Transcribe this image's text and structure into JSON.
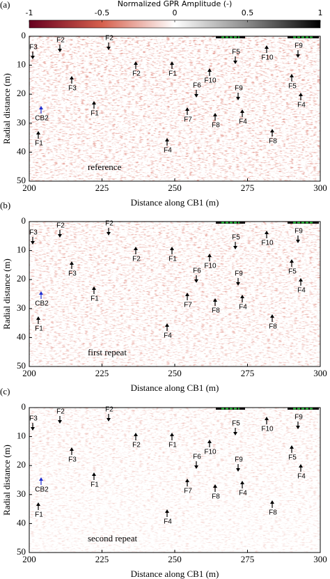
{
  "chart_data": [
    {
      "type": "radargram",
      "panel_label": "(a)",
      "note": "reference",
      "xlabel": "Distance along CB1 (m)",
      "ylabel": "Radial distance (m)",
      "xlim": [
        200,
        300
      ],
      "ylim": [
        0,
        50
      ],
      "y_inverted": true,
      "xticks": [
        200,
        225,
        250,
        275,
        300
      ],
      "yticks": [
        0,
        10,
        20,
        30,
        40,
        50
      ],
      "colorbar": {
        "label": "Normalized GPR Amplitude (-)",
        "lim": [
          -1,
          1
        ],
        "ticks": [
          -1,
          -0.5,
          0,
          0.5,
          1
        ],
        "colors": [
          "#67001f",
          "#d6604d",
          "#ffffff",
          "#8a8a8a",
          "#000000"
        ]
      },
      "annotations": [
        {
          "text": "F3",
          "color": "#000000"
        },
        {
          "text": "F2",
          "color": "#000000"
        },
        {
          "text": "F2",
          "color": "#000000"
        },
        {
          "text": "F5",
          "color": "#000000"
        },
        {
          "text": "F10",
          "color": "#000000"
        },
        {
          "text": "F9",
          "color": "#000000"
        },
        {
          "text": "F2",
          "color": "#000000"
        },
        {
          "text": "F1",
          "color": "#000000"
        },
        {
          "text": "F3",
          "color": "#000000"
        },
        {
          "text": "F10",
          "color": "#000000"
        },
        {
          "text": "F6",
          "color": "#000000"
        },
        {
          "text": "F9",
          "color": "#000000"
        },
        {
          "text": "F5",
          "color": "#000000"
        },
        {
          "text": "F1",
          "color": "#000000"
        },
        {
          "text": "CB2",
          "color": "#1f2fd0"
        },
        {
          "text": "F4",
          "color": "#000000"
        },
        {
          "text": "F7",
          "color": "#000000"
        },
        {
          "text": "F8",
          "color": "#000000"
        },
        {
          "text": "F4",
          "color": "#000000"
        },
        {
          "text": "F8",
          "color": "#000000"
        },
        {
          "text": "F1",
          "color": "#000000"
        },
        {
          "text": "F4",
          "color": "#000000"
        }
      ]
    },
    {
      "type": "radargram",
      "panel_label": "(b)",
      "note": "first repeat",
      "xlabel": "Distance along CB1 (m)",
      "ylabel": "Radial distance (m)",
      "xlim": [
        200,
        300
      ],
      "ylim": [
        0,
        50
      ],
      "y_inverted": true,
      "xticks": [
        200,
        225,
        250,
        275,
        300
      ],
      "yticks": [
        0,
        10,
        20,
        30,
        40,
        50
      ],
      "annotations": [
        {
          "text": "F3",
          "color": "#000000"
        },
        {
          "text": "F2",
          "color": "#000000"
        },
        {
          "text": "F2",
          "color": "#000000"
        },
        {
          "text": "F5",
          "color": "#000000"
        },
        {
          "text": "F10",
          "color": "#000000"
        },
        {
          "text": "F9",
          "color": "#000000"
        },
        {
          "text": "F2",
          "color": "#000000"
        },
        {
          "text": "F1",
          "color": "#000000"
        },
        {
          "text": "F3",
          "color": "#000000"
        },
        {
          "text": "F10",
          "color": "#000000"
        },
        {
          "text": "F6",
          "color": "#000000"
        },
        {
          "text": "F9",
          "color": "#000000"
        },
        {
          "text": "F5",
          "color": "#000000"
        },
        {
          "text": "F1",
          "color": "#000000"
        },
        {
          "text": "CB2",
          "color": "#1f2fd0"
        },
        {
          "text": "F4",
          "color": "#000000"
        },
        {
          "text": "F7",
          "color": "#000000"
        },
        {
          "text": "F8",
          "color": "#000000"
        },
        {
          "text": "F4",
          "color": "#000000"
        },
        {
          "text": "F8",
          "color": "#000000"
        },
        {
          "text": "F1",
          "color": "#000000"
        },
        {
          "text": "F4",
          "color": "#000000"
        }
      ]
    },
    {
      "type": "radargram",
      "panel_label": "(c)",
      "note": "second repeat",
      "xlabel": "Distance along CB1 (m)",
      "ylabel": "Radial distance (m)",
      "xlim": [
        200,
        300
      ],
      "ylim": [
        0,
        50
      ],
      "y_inverted": true,
      "xticks": [
        200,
        225,
        250,
        275,
        300
      ],
      "yticks": [
        0,
        10,
        20,
        30,
        40,
        50
      ],
      "annotations": [
        {
          "text": "F3",
          "color": "#000000"
        },
        {
          "text": "F2",
          "color": "#000000"
        },
        {
          "text": "F2",
          "color": "#000000"
        },
        {
          "text": "F5",
          "color": "#000000"
        },
        {
          "text": "F10",
          "color": "#000000"
        },
        {
          "text": "F9",
          "color": "#000000"
        },
        {
          "text": "F2",
          "color": "#000000"
        },
        {
          "text": "F1",
          "color": "#000000"
        },
        {
          "text": "F3",
          "color": "#000000"
        },
        {
          "text": "F10",
          "color": "#000000"
        },
        {
          "text": "F6",
          "color": "#000000"
        },
        {
          "text": "F9",
          "color": "#000000"
        },
        {
          "text": "F5",
          "color": "#000000"
        },
        {
          "text": "F1",
          "color": "#000000"
        },
        {
          "text": "CB2",
          "color": "#1f2fd0"
        },
        {
          "text": "F4",
          "color": "#000000"
        },
        {
          "text": "F7",
          "color": "#000000"
        },
        {
          "text": "F8",
          "color": "#000000"
        },
        {
          "text": "F4",
          "color": "#000000"
        },
        {
          "text": "F8",
          "color": "#000000"
        },
        {
          "text": "F1",
          "color": "#000000"
        },
        {
          "text": "F4",
          "color": "#000000"
        }
      ]
    }
  ]
}
